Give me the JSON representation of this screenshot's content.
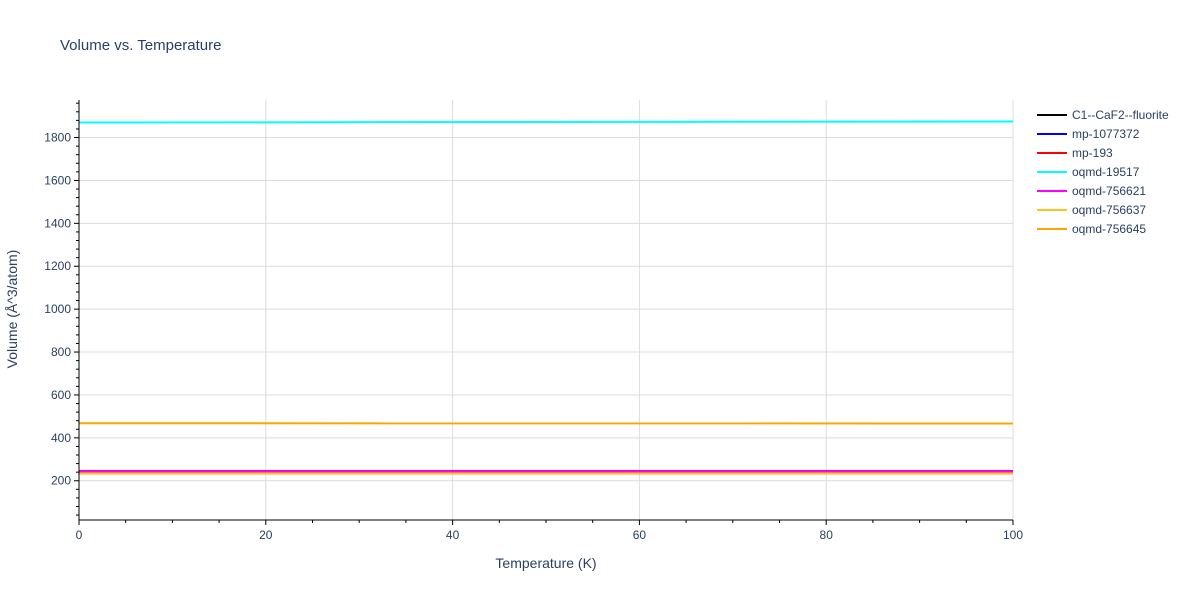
{
  "chart_data": {
    "type": "line",
    "title": "Volume vs. Temperature",
    "xlabel": "Temperature (K)",
    "ylabel": "Volume (Å^3/atom)",
    "xlim": [
      0,
      100
    ],
    "ylim": [
      17,
      1975
    ],
    "x_ticks": [
      0,
      20,
      40,
      60,
      80,
      100
    ],
    "y_ticks": [
      200,
      400,
      600,
      800,
      1000,
      1200,
      1400,
      1600,
      1800
    ],
    "grid": true,
    "legend_position": "right",
    "x": [
      0,
      100
    ],
    "series": [
      {
        "name": "C1--CaF2--fluorite",
        "color": "#000000",
        "values": [
          245,
          245
        ]
      },
      {
        "name": "mp-1077372",
        "color": "#0000ff",
        "values": [
          244,
          244
        ]
      },
      {
        "name": "mp-193",
        "color": "#ff0000",
        "values": [
          244,
          244
        ]
      },
      {
        "name": "oqmd-19517",
        "color": "#00ffff",
        "values": [
          1870,
          1875
        ]
      },
      {
        "name": "oqmd-756621",
        "color": "#ff00ff",
        "values": [
          244,
          244
        ]
      },
      {
        "name": "oqmd-756637",
        "color": "#ffc020",
        "values": [
          233,
          233
        ]
      },
      {
        "name": "oqmd-756645",
        "color": "#ffa500",
        "values": [
          468,
          467
        ]
      }
    ]
  }
}
